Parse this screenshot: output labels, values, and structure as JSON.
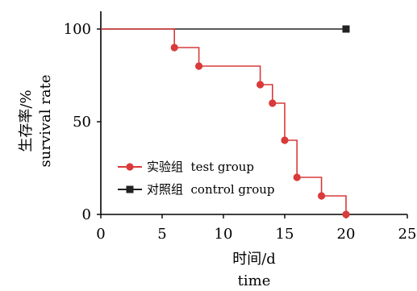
{
  "chart_data": {
    "type": "line",
    "step": true,
    "xlabel_line1": "时间/d",
    "xlabel_line2": "time",
    "ylabel_line1": "生存率/%",
    "ylabel_line2": "survival rate",
    "xlim": [
      0,
      25
    ],
    "ylim": [
      0,
      100
    ],
    "xticks": [
      0,
      5,
      10,
      15,
      20,
      25
    ],
    "yticks": [
      0,
      50,
      100
    ],
    "grid": false,
    "legend_position": "lower-left",
    "series": [
      {
        "name": "实验组  test group",
        "color": "#d93a3a",
        "marker": "circle",
        "x": [
          6,
          8,
          13,
          14,
          15,
          16,
          18,
          20
        ],
        "y": [
          90,
          80,
          70,
          60,
          40,
          20,
          10,
          0
        ]
      },
      {
        "name": "对照组  control group",
        "color": "#222222",
        "marker": "square",
        "x": [
          20
        ],
        "y": [
          100
        ]
      }
    ]
  }
}
